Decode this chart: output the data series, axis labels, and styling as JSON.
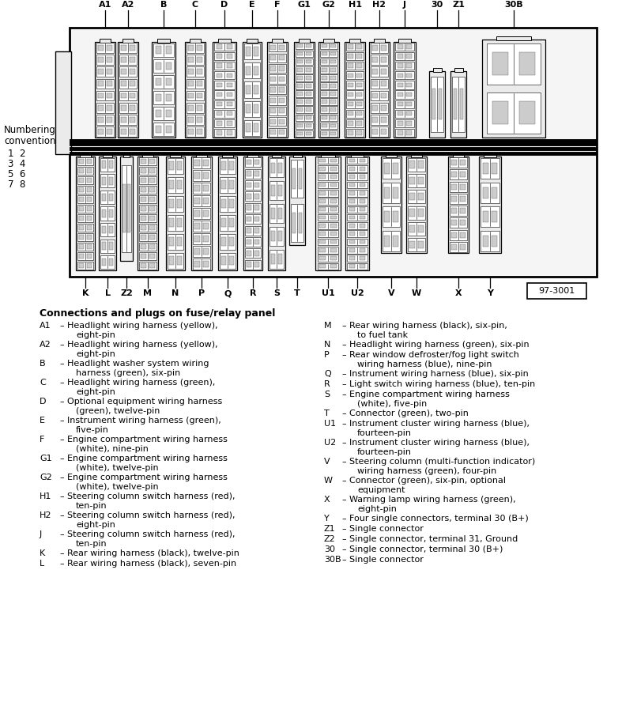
{
  "top_labels": [
    "A1",
    "A2",
    "B",
    "C",
    "D",
    "E",
    "F",
    "G1",
    "G2",
    "H1",
    "H2",
    "J",
    "30",
    "Z1",
    "30B"
  ],
  "bottom_labels": [
    "K",
    "L",
    "Z2",
    "M",
    "N",
    "P",
    "Q",
    "R",
    "S",
    "T",
    "U1",
    "U2",
    "V",
    "W",
    "X",
    "Y"
  ],
  "diagram_ref": "97-3001",
  "numbering_convention_title": [
    "Numbering",
    "convention"
  ],
  "numbering_convention": [
    "1  2",
    "3  4",
    "5  6",
    "7  8"
  ],
  "heading": "Connections and plugs on fuse/relay panel",
  "left_entries": [
    [
      "A1",
      "Headlight wiring harness (yellow),",
      "eight-pin"
    ],
    [
      "A2",
      "Headlight wiring harness (yellow),",
      "eight-pin"
    ],
    [
      "B",
      "Headlight washer system wiring",
      "harness (green), six-pin"
    ],
    [
      "C",
      "Headlight wiring harness (green),",
      "eight-pin"
    ],
    [
      "D",
      "Optional equipment wiring harness",
      "(green), twelve-pin"
    ],
    [
      "E",
      "Instrument wiring harness (green),",
      "five-pin"
    ],
    [
      "F",
      "Engine compartment wiring harness",
      "(white), nine-pin"
    ],
    [
      "G1",
      "Engine compartment wiring harness",
      "(white), twelve-pin"
    ],
    [
      "G2",
      "Engine compartment wiring harness",
      "(white), twelve-pin"
    ],
    [
      "H1",
      "Steering column switch harness (red),",
      "ten-pin"
    ],
    [
      "H2",
      "Steering column switch harness (red),",
      "eight-pin"
    ],
    [
      "J",
      "Steering column switch harness (red),",
      "ten-pin"
    ],
    [
      "K",
      "Rear wiring harness (black), twelve-pin",
      ""
    ],
    [
      "L",
      "Rear wiring harness (black), seven-pin",
      ""
    ]
  ],
  "right_entries": [
    [
      "M",
      "Rear wiring harness (black), six-pin,",
      "to fuel tank"
    ],
    [
      "N",
      "Headlight wiring harness (green), six-pin",
      ""
    ],
    [
      "P",
      "Rear window defroster/fog light switch",
      "wiring harness (blue), nine-pin"
    ],
    [
      "Q",
      "Instrument wiring harness (blue), six-pin",
      ""
    ],
    [
      "R",
      "Light switch wiring harness (blue), ten-pin",
      ""
    ],
    [
      "S",
      "Engine compartment wiring harness",
      "(white), five-pin"
    ],
    [
      "T",
      "Connector (green), two-pin",
      ""
    ],
    [
      "U1",
      "Instrument cluster wiring harness (blue),",
      "fourteen-pin"
    ],
    [
      "U2",
      "Instrument cluster wiring harness (blue),",
      "fourteen-pin"
    ],
    [
      "V",
      "Steering column (multi-function indicator)",
      "wiring harness (green), four-pin"
    ],
    [
      "W",
      "Connector (green), six-pin, optional",
      "equipment"
    ],
    [
      "X",
      "Warning lamp wiring harness (green),",
      "eight-pin"
    ],
    [
      "Y",
      "Four single connectors, terminal 30 (B+)",
      ""
    ],
    [
      "Z1",
      "Single connector",
      ""
    ],
    [
      "Z2",
      "Single connector, terminal 31, Ground",
      ""
    ],
    [
      "30",
      "Single connector, terminal 30 (B+)",
      ""
    ],
    [
      "30B",
      "Single connector",
      ""
    ]
  ],
  "bg_color": "#ffffff"
}
